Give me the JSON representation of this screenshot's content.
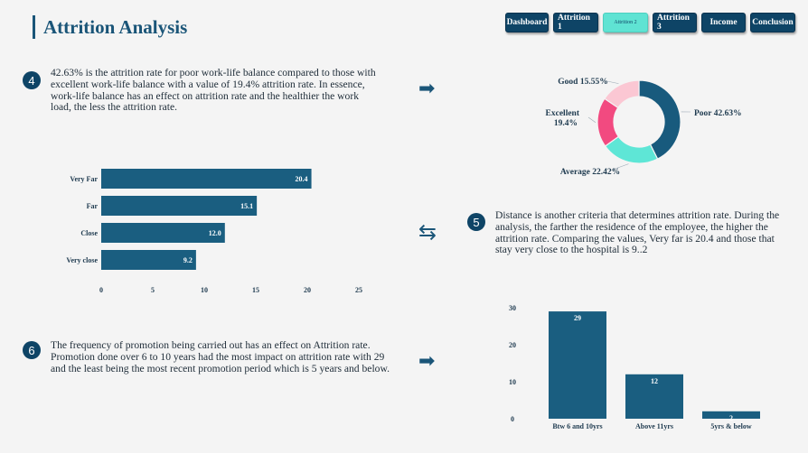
{
  "header": {
    "title": "Attrition Analysis"
  },
  "nav": {
    "items": [
      {
        "label": "Dashboard",
        "active": false
      },
      {
        "label": "Attrition 1",
        "active": false
      },
      {
        "label": "Attrition 2",
        "active": true
      },
      {
        "label": "Attrition 3",
        "active": false
      },
      {
        "label": "Income",
        "active": false
      },
      {
        "label": "Conclusion",
        "active": false
      }
    ]
  },
  "sections": {
    "s4": {
      "number": "4",
      "text": "42.63% is the attrition rate for poor work-life balance compared to those with excellent work-life balance with a value of 19.4% attrition rate. In essence, work-life balance has an effect on attrition rate and the healthier the work load, the less the attrition rate."
    },
    "s5": {
      "number": "5",
      "text": "Distance is another criteria that determines attrition rate. During the analysis, the farther the residence of the employee, the higher the attrition rate. Comparing the values, Very far is 20.4 and those that stay very close to the hospital is 9..2"
    },
    "s6": {
      "number": "6",
      "text": "The frequency of promotion being carried out has an effect on Attrition rate. Promotion done over 6 to 10 years had the most impact on attrition rate with 29 and the least being the most recent promotion period which is 5 years and below."
    }
  },
  "icons": {
    "arrow_right": "arrow-right-icon",
    "swap": "swap-arrows-icon"
  },
  "colors": {
    "primary": "#1a5e80",
    "poor": "#185a7d",
    "average": "#5ee6d6",
    "excellent": "#f24a80",
    "good": "#fbc7d3"
  },
  "chart_data": [
    {
      "type": "pie",
      "variant": "donut",
      "labels": [
        "Poor",
        "Average",
        "Excellent",
        "Good"
      ],
      "values": [
        42.63,
        22.42,
        19.4,
        15.55
      ],
      "display_labels": [
        "Poor 42.63%",
        "Average 22.42%",
        "Excellent 19.4%",
        "Good 15.55%"
      ],
      "colors": [
        "#185a7d",
        "#5ee6d6",
        "#f24a80",
        "#fbc7d3"
      ]
    },
    {
      "type": "bar",
      "orientation": "horizontal",
      "categories": [
        "Very Far",
        "Far",
        "Close",
        "Very close"
      ],
      "values": [
        20.4,
        15.1,
        12.0,
        9.2
      ],
      "value_labels": [
        "20.4",
        "15.1",
        "12.0",
        "9.2"
      ],
      "xticks": [
        "0",
        "5",
        "10",
        "15",
        "20",
        "25"
      ],
      "xlim": [
        0,
        25
      ],
      "grid": false
    },
    {
      "type": "bar",
      "orientation": "vertical",
      "categories": [
        "Btw 6 and 10yrs",
        "Above 11yrs",
        "5yrs & below"
      ],
      "values": [
        29,
        12,
        2
      ],
      "value_labels": [
        "29",
        "12",
        "2"
      ],
      "yticks": [
        "0",
        "10",
        "20",
        "30"
      ],
      "ylim": [
        0,
        30
      ],
      "grid": false
    }
  ]
}
